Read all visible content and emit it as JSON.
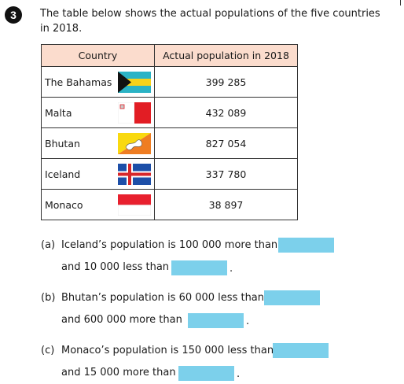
{
  "question_number": "3",
  "intro": {
    "line1": "The table below shows the actual populations of the five countries",
    "line2": "in 2018."
  },
  "table": {
    "headers": [
      "Country",
      "Actual population in 2018"
    ],
    "rows": [
      {
        "country": "The Bahamas",
        "population": "399 285",
        "flag": "bahamas-flag"
      },
      {
        "country": "Malta",
        "population": "432 089",
        "flag": "malta-flag"
      },
      {
        "country": "Bhutan",
        "population": "827 054",
        "flag": "bhutan-flag"
      },
      {
        "country": "Iceland",
        "population": "337 780",
        "flag": "iceland-flag"
      },
      {
        "country": "Monaco",
        "population": "38 897",
        "flag": "monaco-flag"
      }
    ],
    "header_color": "#fbdccd"
  },
  "parts": [
    {
      "label": "(a)",
      "line1": "Iceland’s population is 100 000 more than",
      "line2": "and 10 000 less than",
      "end": "."
    },
    {
      "label": "(b)",
      "line1": "Bhutan’s population is 60 000 less than",
      "line2": "and 600 000 more than",
      "end": "."
    },
    {
      "label": "(c)",
      "line1": "Monaco’s population is 150 000 less than",
      "line2": "and 15 000 more than",
      "end": "."
    }
  ],
  "answer_box_color": "#7cd0eb"
}
